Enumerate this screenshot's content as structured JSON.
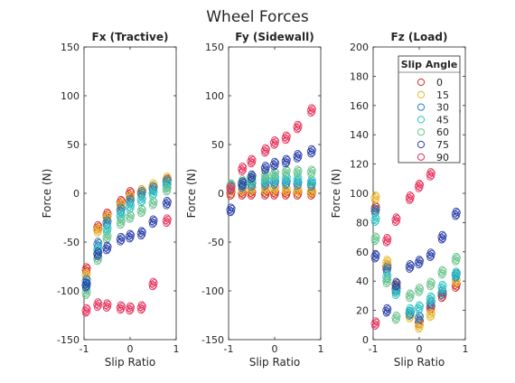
{
  "figure_title": "Wheel Forces",
  "chart_data": [
    {
      "type": "scatter",
      "title": "Fx (Tractive)",
      "xlabel": "Slip Ratio",
      "ylabel": "Force (N)",
      "xlim": [
        -1,
        1
      ],
      "ylim": [
        -150,
        150
      ],
      "xticks": [
        "-1",
        "0",
        "1"
      ],
      "yticks": [
        "-150",
        "-100",
        "-50",
        "0",
        "50",
        "100",
        "150"
      ],
      "x": [
        -0.95,
        -0.7,
        -0.5,
        -0.2,
        0,
        0.25,
        0.5,
        0.8
      ],
      "series": [
        {
          "name": "0",
          "color": "#d62728",
          "values": [
            -78,
            -35,
            -22,
            -9,
            0,
            2,
            5,
            13
          ]
        },
        {
          "name": "15",
          "color": "#e8b92c",
          "values": [
            -84,
            -38,
            -25,
            -12,
            -4,
            2,
            8,
            15
          ]
        },
        {
          "name": "30",
          "color": "#2c7bb6",
          "values": [
            -90,
            -52,
            -30,
            -17,
            -8,
            0,
            5,
            12
          ]
        },
        {
          "name": "45",
          "color": "#2ec4c4",
          "values": [
            -95,
            -58,
            -37,
            -23,
            -14,
            -7,
            0,
            8
          ]
        },
        {
          "name": "60",
          "color": "#6cc48f",
          "values": [
            -102,
            -67,
            -45,
            -30,
            -24,
            -18,
            -10,
            4
          ]
        },
        {
          "name": "75",
          "color": "#2b3fa8",
          "values": [
            -94,
            -62,
            -56,
            -47,
            -44,
            -41,
            -29,
            -10
          ]
        },
        {
          "name": "90",
          "color": "#e8305a",
          "values": [
            -120,
            -114,
            -115,
            -117,
            -118,
            -117,
            -93,
            -28
          ]
        }
      ]
    },
    {
      "type": "scatter",
      "title": "Fy (Sidewall)",
      "xlabel": "Slip Ratio",
      "ylabel": "Force (N)",
      "xlim": [
        -1,
        1
      ],
      "ylim": [
        -150,
        150
      ],
      "xticks": [
        "-1",
        "0",
        "1"
      ],
      "yticks": [
        "-150",
        "-100",
        "-50",
        "0",
        "50",
        "100",
        "150"
      ],
      "x": [
        -0.95,
        -0.7,
        -0.5,
        -0.2,
        0,
        0.25,
        0.5,
        0.8
      ],
      "series": [
        {
          "name": "0",
          "color": "#d62728",
          "values": [
            0,
            0,
            0,
            0,
            0,
            0,
            0,
            0
          ]
        },
        {
          "name": "15",
          "color": "#e8b92c",
          "values": [
            3,
            4,
            5,
            5,
            5,
            4,
            3,
            2
          ]
        },
        {
          "name": "30",
          "color": "#2c7bb6",
          "values": [
            6,
            8,
            9,
            10,
            11,
            11,
            10,
            9
          ]
        },
        {
          "name": "45",
          "color": "#2ec4c4",
          "values": [
            7,
            10,
            12,
            14,
            15,
            15,
            14,
            12
          ]
        },
        {
          "name": "60",
          "color": "#6cc48f",
          "values": [
            8,
            12,
            15,
            18,
            20,
            22,
            22,
            22
          ]
        },
        {
          "name": "75",
          "color": "#2b3fa8",
          "values": [
            -17,
            10,
            17,
            26,
            30,
            33,
            38,
            43
          ]
        },
        {
          "name": "90",
          "color": "#e8305a",
          "values": [
            5,
            25,
            33,
            44,
            52,
            57,
            68,
            85
          ]
        }
      ]
    },
    {
      "type": "scatter",
      "title": "Fz (Load)",
      "xlabel": "Slip Ratio",
      "ylabel": "Force (N)",
      "xlim": [
        -1,
        1
      ],
      "ylim": [
        0,
        200
      ],
      "xticks": [
        "-1",
        "0",
        "1"
      ],
      "yticks": [
        "0",
        "20",
        "40",
        "60",
        "80",
        "100",
        "120",
        "140",
        "160",
        "180",
        "200"
      ],
      "x": [
        -0.95,
        -0.7,
        -0.5,
        -0.2,
        0,
        0.25,
        0.5,
        0.8
      ],
      "series": [
        {
          "name": "0",
          "color": "#d62728",
          "values": [
            90,
            50,
            35,
            18,
            12,
            22,
            30,
            37
          ]
        },
        {
          "name": "15",
          "color": "#e8b92c",
          "values": [
            97,
            53,
            37,
            16,
            9,
            17,
            32,
            40
          ]
        },
        {
          "name": "30",
          "color": "#2c7bb6",
          "values": [
            88,
            48,
            34,
            18,
            15,
            25,
            32,
            44
          ]
        },
        {
          "name": "45",
          "color": "#2ec4c4",
          "values": [
            82,
            43,
            32,
            20,
            22,
            28,
            36,
            45
          ]
        },
        {
          "name": "60",
          "color": "#6cc48f",
          "values": [
            69,
            40,
            15,
            30,
            34,
            38,
            46,
            55
          ]
        },
        {
          "name": "75",
          "color": "#2b3fa8",
          "values": [
            57,
            20,
            38,
            50,
            53,
            58,
            70,
            86
          ]
        },
        {
          "name": "90",
          "color": "#e8305a",
          "values": [
            11,
            68,
            82,
            97,
            105,
            113,
            150,
            155
          ]
        }
      ]
    }
  ],
  "legend": {
    "title": "Slip Angle",
    "placement": "top-right of Fz (Load)",
    "entries": [
      {
        "label": "0",
        "color": "#d62728"
      },
      {
        "label": "15",
        "color": "#e8b92c"
      },
      {
        "label": "30",
        "color": "#2c7bb6"
      },
      {
        "label": "45",
        "color": "#2ec4c4"
      },
      {
        "label": "60",
        "color": "#6cc48f"
      },
      {
        "label": "75",
        "color": "#2b3fa8"
      },
      {
        "label": "90",
        "color": "#e8305a"
      }
    ]
  }
}
